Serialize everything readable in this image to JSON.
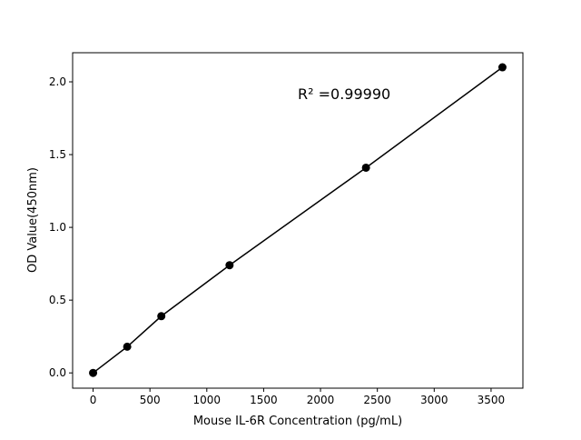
{
  "chart_data": {
    "type": "scatter",
    "title": "",
    "xlabel": "Mouse IL-6R Concentration (pg/mL)",
    "ylabel": "OD Value(450nm)",
    "xlim": [
      -180,
      3780
    ],
    "ylim": [
      -0.105,
      2.2
    ],
    "xticks": [
      0,
      500,
      1000,
      1500,
      2000,
      2500,
      3000,
      3500
    ],
    "yticks": [
      0.0,
      0.5,
      1.0,
      1.5,
      2.0
    ],
    "xtick_labels": [
      "0",
      "500",
      "1000",
      "1500",
      "2000",
      "2500",
      "3000",
      "3500"
    ],
    "ytick_labels": [
      "0.0",
      "0.5",
      "1.0",
      "1.5",
      "2.0"
    ],
    "grid": false,
    "series": [
      {
        "x": [
          0,
          300,
          600,
          1200,
          2400,
          3600
        ],
        "y": [
          0.0,
          0.18,
          0.39,
          0.74,
          1.41,
          2.1
        ],
        "color": "#000000",
        "marker": "circle",
        "line": true
      }
    ],
    "annotations": [
      {
        "text": "R² =0.99990",
        "x": 1800,
        "y": 1.88
      }
    ]
  }
}
